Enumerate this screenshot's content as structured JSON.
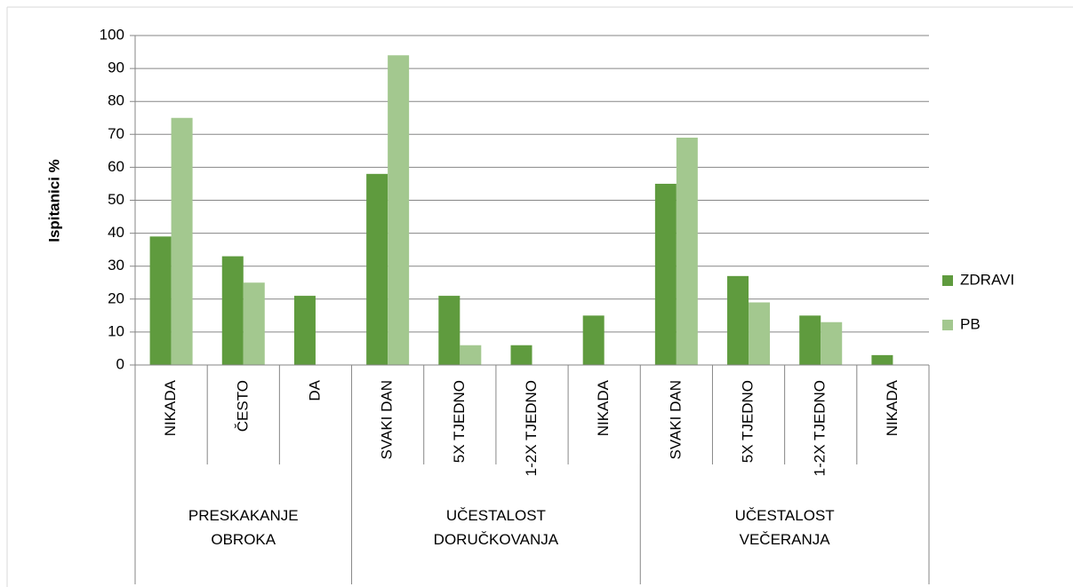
{
  "chart_data": {
    "type": "bar",
    "y_label": "Ispitanici %",
    "categories": [
      "NIKADA",
      "ČESTO",
      "DA",
      "SVAKI DAN",
      "5X TJEDNO",
      "1-2X TJEDNO",
      "NIKADA",
      "SVAKI DAN",
      "5X TJEDNO",
      "1-2X TJEDNO",
      "NIKADA"
    ],
    "groups": [
      {
        "label": "PRESKAKANJE OBROKA",
        "count": 3
      },
      {
        "label": "UČESTALOST DORUČKOVANJA",
        "count": 4
      },
      {
        "label": "UČESTALOST VEČERANJA",
        "count": 4
      }
    ],
    "series": [
      {
        "name": "ZDRAVI",
        "color": "#5f9b3e",
        "values": [
          39,
          33,
          21,
          58,
          21,
          6,
          15,
          55,
          27,
          15,
          3
        ]
      },
      {
        "name": "PB",
        "color": "#a3c88f",
        "values": [
          75,
          25,
          0,
          94,
          6,
          0,
          0,
          69,
          19,
          13,
          0
        ]
      }
    ],
    "ylim": [
      0,
      100
    ],
    "yticks": [
      0,
      10,
      20,
      30,
      40,
      50,
      60,
      70,
      80,
      90,
      100
    ],
    "grid": true,
    "legend": "right"
  }
}
